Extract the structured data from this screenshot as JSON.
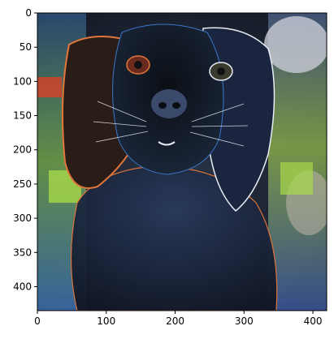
{
  "image": {
    "description_icon": "inverted-dog-photo-icon",
    "colors": {
      "background": "#1c2433",
      "highlight_orange": "#e2763a",
      "highlight_green": "#a6d84a",
      "highlight_blue": "#3a78c8",
      "edge_white": "#e8eef4"
    }
  },
  "axes": {
    "x_ticks": [
      "0",
      "100",
      "200",
      "300",
      "400"
    ],
    "y_ticks": [
      "0",
      "50",
      "100",
      "150",
      "200",
      "250",
      "300",
      "350",
      "400"
    ],
    "x_range": [
      0,
      420
    ],
    "y_range": [
      0,
      435
    ]
  }
}
